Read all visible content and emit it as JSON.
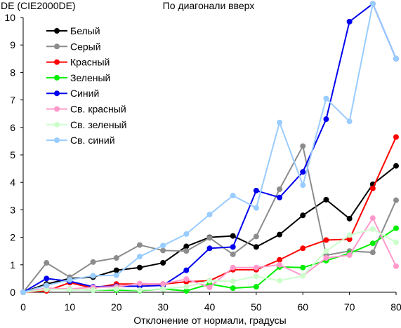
{
  "chart_data": {
    "type": "line",
    "title": "По диагонали вверх",
    "ylabel": "DE (CIE2000DE)",
    "xlabel": "Отклонение от нормали, градусы",
    "xlim": [
      0,
      80
    ],
    "ylim": [
      0,
      10
    ],
    "x_ticks": [
      0,
      10,
      20,
      30,
      40,
      50,
      60,
      70,
      80
    ],
    "y_ticks": [
      0,
      1,
      2,
      3,
      4,
      5,
      6,
      7,
      8,
      9,
      10
    ],
    "grid": false,
    "legend_position": "top-left",
    "x": [
      0,
      5,
      10,
      15,
      20,
      25,
      30,
      35,
      40,
      45,
      50,
      55,
      60,
      65,
      70,
      75,
      80
    ],
    "series": [
      {
        "name": "Белый",
        "color": "#000000",
        "values": [
          0,
          0.3,
          0.5,
          0.55,
          0.8,
          0.9,
          1.07,
          1.67,
          2.0,
          2.05,
          1.65,
          2.1,
          2.8,
          3.37,
          2.68,
          3.93,
          4.6
        ]
      },
      {
        "name": "Серый",
        "color": "#8c8c8c",
        "values": [
          0,
          1.07,
          0.55,
          1.1,
          1.25,
          1.72,
          1.52,
          1.5,
          1.98,
          1.38,
          2.03,
          3.75,
          5.32,
          1.35,
          1.5,
          1.45,
          3.35
        ]
      },
      {
        "name": "Красный",
        "color": "#ff0000",
        "values": [
          0,
          0.05,
          0.35,
          0.15,
          0.3,
          0.3,
          0.3,
          0.38,
          0.42,
          0.82,
          0.82,
          1.18,
          1.6,
          1.9,
          1.93,
          3.78,
          5.65
        ]
      },
      {
        "name": "Зеленый",
        "color": "#00ee00",
        "values": [
          0,
          0.12,
          0.1,
          0.08,
          0.08,
          0.06,
          0.12,
          0.05,
          0.3,
          0.15,
          0.2,
          0.92,
          0.9,
          1.15,
          1.42,
          1.78,
          2.33
        ]
      },
      {
        "name": "Синий",
        "color": "#0000ee",
        "values": [
          0,
          0.5,
          0.4,
          0.2,
          0.22,
          0.22,
          0.25,
          0.8,
          1.6,
          1.65,
          3.7,
          3.45,
          4.38,
          6.3,
          9.85,
          10.5,
          8.5
        ]
      },
      {
        "name": "Св. красный",
        "color": "#ff99cc",
        "values": [
          0,
          0.15,
          0.12,
          0.18,
          0.2,
          0.32,
          0.3,
          0.48,
          0.18,
          0.9,
          0.9,
          1.0,
          0.6,
          1.25,
          1.35,
          2.7,
          0.95
        ]
      },
      {
        "name": "Св. зеленый",
        "color": "#ccffcc",
        "values": [
          0,
          0.1,
          0.1,
          0.08,
          0.12,
          0.08,
          0.12,
          0.2,
          0.42,
          0.4,
          0.58,
          0.42,
          0.6,
          1.5,
          2.08,
          2.3,
          1.82
        ]
      },
      {
        "name": "Св. синий",
        "color": "#99ccff",
        "values": [
          0,
          0.25,
          0.45,
          0.6,
          0.62,
          1.3,
          1.7,
          2.12,
          2.83,
          3.52,
          3.07,
          6.18,
          3.9,
          7.05,
          6.22,
          10.5,
          8.5
        ]
      }
    ]
  }
}
